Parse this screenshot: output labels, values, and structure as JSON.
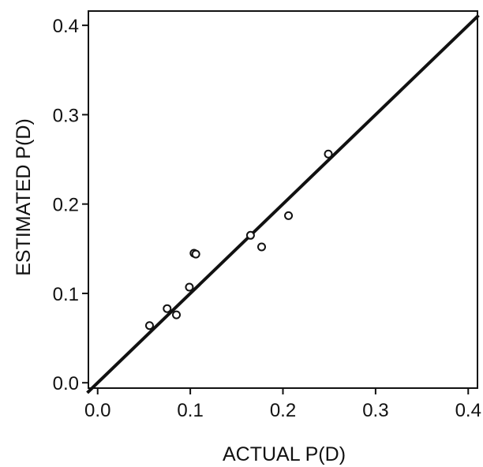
{
  "chart_data": {
    "type": "scatter",
    "title": "",
    "xlabel": "ACTUAL P(D)",
    "ylabel": "ESTIMATED P(D)",
    "xlim": [
      -0.01,
      0.41
    ],
    "ylim": [
      -0.006,
      0.416
    ],
    "x_ticks": [
      "0.0",
      "0.1",
      "0.2",
      "0.3",
      "0.4"
    ],
    "y_ticks": [
      "0.0",
      "0.1",
      "0.2",
      "0.3",
      "0.4"
    ],
    "grid": false,
    "legend": "none",
    "reference_line": {
      "type": "identity",
      "from": [
        -0.01,
        -0.01
      ],
      "to": [
        0.41,
        0.41
      ]
    },
    "points": [
      {
        "x": 0.056,
        "y": 0.064
      },
      {
        "x": 0.075,
        "y": 0.083
      },
      {
        "x": 0.085,
        "y": 0.076
      },
      {
        "x": 0.099,
        "y": 0.107
      },
      {
        "x": 0.104,
        "y": 0.145
      },
      {
        "x": 0.106,
        "y": 0.144
      },
      {
        "x": 0.165,
        "y": 0.165
      },
      {
        "x": 0.177,
        "y": 0.152
      },
      {
        "x": 0.206,
        "y": 0.187
      },
      {
        "x": 0.249,
        "y": 0.256
      }
    ],
    "colors": {
      "marker": "#111111",
      "line": "#111111",
      "axis": "#111111"
    }
  }
}
